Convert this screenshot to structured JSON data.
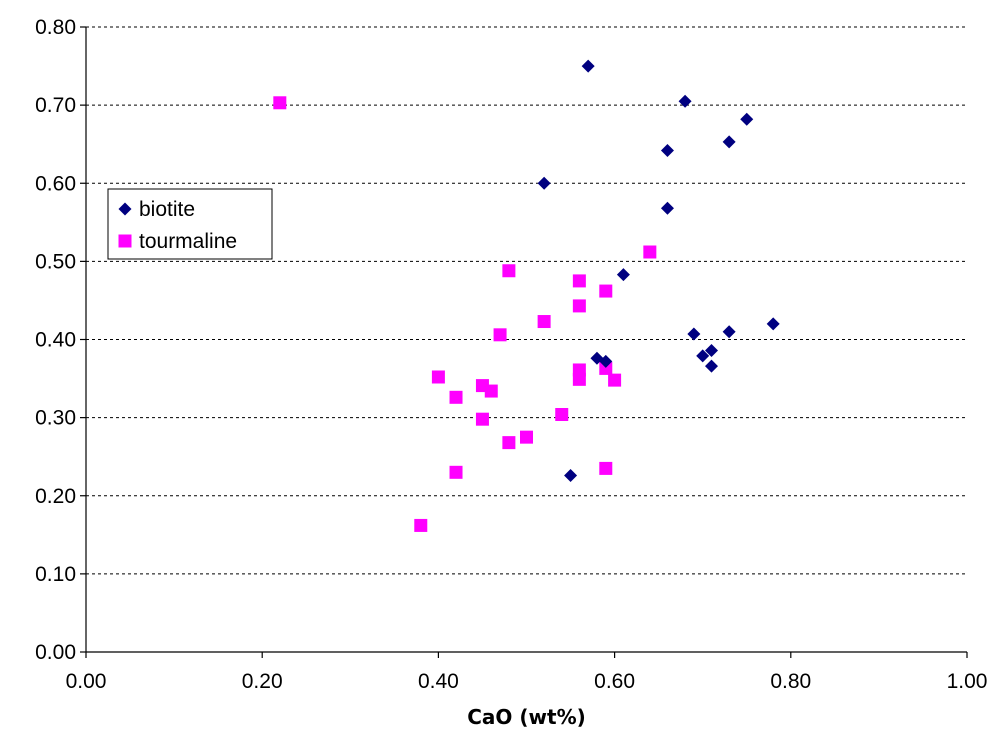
{
  "chart_data": {
    "type": "scatter",
    "title": "",
    "xlabel": "CaO (wt%)",
    "ylabel": "",
    "xlim": [
      0,
      1
    ],
    "ylim": [
      0,
      0.8
    ],
    "xticks": [
      0,
      0.2,
      0.4,
      0.6,
      0.8,
      1.0
    ],
    "yticks": [
      0,
      0.1,
      0.2,
      0.3,
      0.4,
      0.5,
      0.6,
      0.7,
      0.8
    ],
    "tick_decimals": 2,
    "grid": "horizontal dashed",
    "legend_placement": "left",
    "series": [
      {
        "name": "biotite",
        "marker": "diamond",
        "color": "#000080",
        "points": [
          [
            0.57,
            0.75
          ],
          [
            0.68,
            0.705
          ],
          [
            0.75,
            0.682
          ],
          [
            0.73,
            0.653
          ],
          [
            0.66,
            0.642
          ],
          [
            0.52,
            0.6
          ],
          [
            0.66,
            0.568
          ],
          [
            0.61,
            0.483
          ],
          [
            0.78,
            0.42
          ],
          [
            0.73,
            0.41
          ],
          [
            0.69,
            0.407
          ],
          [
            0.71,
            0.386
          ],
          [
            0.7,
            0.379
          ],
          [
            0.58,
            0.376
          ],
          [
            0.59,
            0.372
          ],
          [
            0.71,
            0.366
          ],
          [
            0.55,
            0.226
          ]
        ]
      },
      {
        "name": "tourmaline",
        "marker": "square",
        "color": "#FF00FF",
        "points": [
          [
            0.22,
            0.703
          ],
          [
            0.64,
            0.512
          ],
          [
            0.48,
            0.488
          ],
          [
            0.56,
            0.475
          ],
          [
            0.59,
            0.462
          ],
          [
            0.56,
            0.443
          ],
          [
            0.52,
            0.423
          ],
          [
            0.47,
            0.406
          ],
          [
            0.56,
            0.361
          ],
          [
            0.59,
            0.363
          ],
          [
            0.4,
            0.352
          ],
          [
            0.56,
            0.349
          ],
          [
            0.6,
            0.348
          ],
          [
            0.45,
            0.341
          ],
          [
            0.46,
            0.334
          ],
          [
            0.42,
            0.326
          ],
          [
            0.54,
            0.304
          ],
          [
            0.45,
            0.298
          ],
          [
            0.5,
            0.275
          ],
          [
            0.48,
            0.268
          ],
          [
            0.59,
            0.235
          ],
          [
            0.42,
            0.23
          ],
          [
            0.38,
            0.162
          ]
        ]
      }
    ]
  }
}
